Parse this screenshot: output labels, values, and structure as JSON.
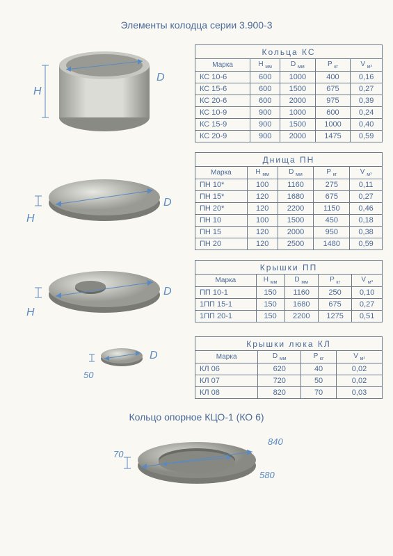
{
  "title": "Элементы колодца серии 3.900-3",
  "bottom_title": "Кольцо опорное КЦО-1 (КО 6)",
  "bottom_dims": {
    "outer": "840",
    "inner": "580",
    "height": "70"
  },
  "columns_std": [
    "Марка",
    "H мм",
    "D мм",
    "P кг",
    "V м³"
  ],
  "columns_kl": [
    "Марка",
    "D мм",
    "P кг",
    "V м³"
  ],
  "tables": [
    {
      "title": "Кольца   КС",
      "cols": "std",
      "rows": [
        [
          "КС 10-6",
          "600",
          "1000",
          "400",
          "0,16"
        ],
        [
          "КС 15-6",
          "600",
          "1500",
          "675",
          "0,27"
        ],
        [
          "КС 20-6",
          "600",
          "2000",
          "975",
          "0,39"
        ],
        [
          "КС 10-9",
          "900",
          "1000",
          "600",
          "0,24"
        ],
        [
          "КС 15-9",
          "900",
          "1500",
          "1000",
          "0,40"
        ],
        [
          "КС 20-9",
          "900",
          "2000",
          "1475",
          "0,59"
        ]
      ]
    },
    {
      "title": "Днища   ПН",
      "cols": "std",
      "rows": [
        [
          "ПН 10*",
          "100",
          "1160",
          "275",
          "0,11"
        ],
        [
          "ПН 15*",
          "120",
          "1680",
          "675",
          "0,27"
        ],
        [
          "ПН 20*",
          "120",
          "2200",
          "1150",
          "0,46"
        ],
        [
          "ПН 10",
          "100",
          "1500",
          "450",
          "0,18"
        ],
        [
          "ПН 15",
          "120",
          "2000",
          "950",
          "0,38"
        ],
        [
          "ПН 20",
          "120",
          "2500",
          "1480",
          "0,59"
        ]
      ]
    },
    {
      "title": "Крышки   ПП",
      "cols": "std",
      "rows": [
        [
          "ПП 10-1",
          "150",
          "1160",
          "250",
          "0,10"
        ],
        [
          "1ПП 15-1",
          "150",
          "1680",
          "675",
          "0,27"
        ],
        [
          "1ПП 20-1",
          "150",
          "2200",
          "1275",
          "0,51"
        ]
      ]
    },
    {
      "title": "Крышки люка   КЛ",
      "cols": "kl",
      "rows": [
        [
          "КЛ 06",
          "620",
          "40",
          "0,02"
        ],
        [
          "КЛ 07",
          "720",
          "50",
          "0,02"
        ],
        [
          "КЛ 08",
          "820",
          "70",
          "0,03"
        ]
      ]
    }
  ],
  "section_heights": [
    160,
    150,
    110,
    110
  ],
  "hatch_label_4": "50",
  "colors": {
    "text": "#4a6a9a",
    "border": "#6a7a8a",
    "dim": "#5a8ac0",
    "bg": "#faf8f2",
    "shape_light": "#d8d8d4",
    "shape_dark": "#9a9a94",
    "shape_mid": "#b8b8b2"
  }
}
